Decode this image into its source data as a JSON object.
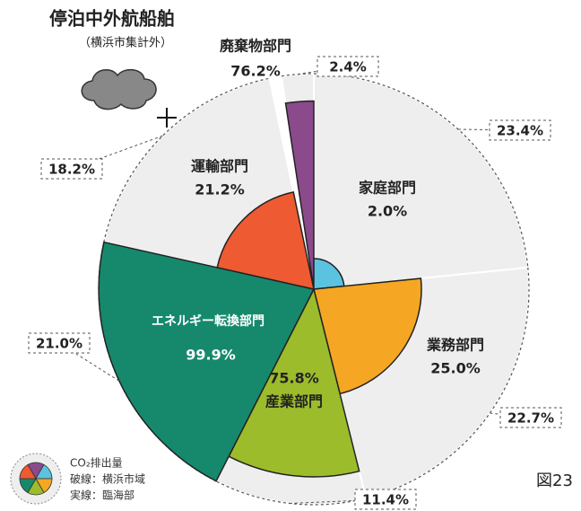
{
  "chart_data": {
    "type": "polar_pie",
    "title": "停泊中外航船舶",
    "subtitle": "（横浜市集計外）",
    "categories": [
      "廃棄物部門",
      "家庭部門",
      "業務部門",
      "産業部門",
      "エネルギー転換部門",
      "運輸部門"
    ],
    "colors": [
      "#8b4a8c",
      "#5bc3e0",
      "#f5a623",
      "#9cbc2b",
      "#16896d",
      "#ee5a32"
    ],
    "legend_title": "CO₂排出量",
    "figure_label": "図23",
    "series": [
      {
        "name": "破線：横浜市域",
        "values": [
          2.4,
          23.4,
          22.7,
          11.4,
          21.0,
          18.2
        ],
        "value_labels": [
          "2.4%",
          "23.4%",
          "22.7%",
          "11.4%",
          "21.0%",
          "18.2%"
        ]
      },
      {
        "name": "実線：臨海部",
        "values": [
          76.2,
          2.0,
          25.0,
          75.8,
          99.9,
          21.2
        ],
        "value_labels": [
          "76.2%",
          "2.0%",
          "25.0%",
          "75.8%",
          "99.9%",
          "21.2%"
        ]
      }
    ]
  }
}
